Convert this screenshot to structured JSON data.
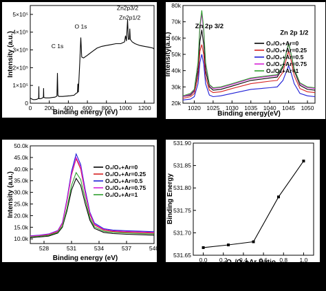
{
  "chart_data": [
    {
      "type": "line",
      "xlabel": "Binding energy (eV)",
      "ylabel": "Intensity (a.u.)",
      "xlim": [
        0,
        1300
      ],
      "ylim": [
        0,
        550000
      ],
      "xticks": [
        0,
        200,
        400,
        600,
        800,
        1000,
        1200
      ],
      "xtick_labels": [
        "0",
        "200",
        "400",
        "600",
        "800",
        "1000",
        "1200"
      ],
      "yticks": [
        0,
        100000,
        200000,
        300000,
        400000,
        500000
      ],
      "ytick_labels": [
        "0",
        "1×10⁵",
        "2×10⁵",
        "3×10⁵",
        "4×10⁵",
        "5×10⁵"
      ],
      "annotations": [
        {
          "text": "C 1s",
          "x": 285,
          "y": 310000
        },
        {
          "text": "O 1s",
          "x": 531,
          "y": 420000
        },
        {
          "text": "Zn2p3/2",
          "x": 1022,
          "y": 525000
        },
        {
          "text": "Zn2p1/2",
          "x": 1045,
          "y": 470000
        }
      ],
      "series": [
        {
          "x": [
            0,
            10,
            30,
            50,
            70,
            88,
            90,
            92,
            110,
            130,
            138,
            140,
            142,
            160,
            200,
            230,
            260,
            280,
            285,
            290,
            300,
            340,
            380,
            420,
            460,
            480,
            496,
            500,
            505,
            520,
            531,
            540,
            560,
            600,
            650,
            700,
            750,
            800,
            850,
            900,
            950,
            990,
            1000,
            1010,
            1022,
            1030,
            1040,
            1045,
            1050,
            1070,
            1100,
            1150,
            1200,
            1250,
            1290,
            1300
          ],
          "y": [
            30000,
            25000,
            20000,
            20000,
            22000,
            28000,
            95000,
            25000,
            25000,
            30000,
            35000,
            85000,
            32000,
            30000,
            30000,
            32000,
            34000,
            40000,
            170000,
            45000,
            38000,
            38000,
            40000,
            42000,
            45000,
            55000,
            60000,
            110000,
            62000,
            230000,
            370000,
            260000,
            255000,
            270000,
            290000,
            310000,
            320000,
            325000,
            330000,
            335000,
            335000,
            345000,
            380000,
            350000,
            470000,
            360000,
            360000,
            420000,
            360000,
            345000,
            335000,
            325000,
            320000,
            315000,
            310000,
            305000
          ]
        }
      ]
    },
    {
      "type": "line",
      "xlabel": "Binding energy(eV)",
      "ylabel": "Intensity(a.u.)",
      "xlim": [
        1017,
        1052
      ],
      "ylim": [
        20000,
        80000
      ],
      "xticks": [
        1020,
        1025,
        1030,
        1035,
        1040,
        1045,
        1050
      ],
      "yticks": [
        20000,
        30000,
        40000,
        50000,
        60000,
        70000,
        80000
      ],
      "ytick_labels": [
        "20k",
        "30k",
        "40k",
        "50k",
        "60k",
        "70k",
        "80k"
      ],
      "annotations": [
        {
          "text": "Zn 2p 3/2",
          "x": 1024.0,
          "y": 66000
        },
        {
          "text": "Zn 2p 1/2",
          "x": 1046.5,
          "y": 62000
        }
      ],
      "legend": "top-right",
      "x": [
        1017,
        1019,
        1020,
        1021,
        1021.5,
        1022,
        1022.5,
        1023,
        1024,
        1025,
        1027,
        1030,
        1035,
        1040,
        1042,
        1043.5,
        1044.5,
        1045,
        1045.5,
        1046.5,
        1048,
        1050,
        1052
      ],
      "series": [
        {
          "name": "O₂/O₂+Ar=0",
          "color": "#000000",
          "values": [
            24000,
            25000,
            27500,
            40000,
            58000,
            65000,
            56000,
            40000,
            30000,
            28000,
            28500,
            30500,
            34000,
            35500,
            36000,
            42000,
            52000,
            57000,
            52000,
            40000,
            31000,
            28500,
            28000
          ]
        },
        {
          "name": "O₂/O₂+Ar=0.25",
          "color": "#d62020",
          "values": [
            23000,
            24000,
            26000,
            36000,
            52000,
            56000,
            50000,
            36000,
            28000,
            26500,
            27000,
            29000,
            32000,
            33500,
            34000,
            39000,
            48000,
            52000,
            48000,
            37000,
            29000,
            27000,
            26500
          ]
        },
        {
          "name": "O₂/O₂+Ar=0.5",
          "color": "#1d1dd6",
          "values": [
            22000,
            22500,
            24000,
            32000,
            45000,
            50000,
            44000,
            32000,
            25000,
            24000,
            24500,
            26000,
            28500,
            29500,
            30000,
            34000,
            40000,
            43000,
            40000,
            32000,
            26000,
            24500,
            24000
          ]
        },
        {
          "name": "O₂/O₂+Ar=0.75",
          "color": "#d61fd6",
          "values": [
            24000,
            25500,
            28000,
            44000,
            66000,
            75000,
            64000,
            44000,
            31000,
            29000,
            29500,
            31500,
            35000,
            36500,
            37000,
            43000,
            52000,
            56000,
            52000,
            41000,
            32000,
            29500,
            29000
          ]
        },
        {
          "name": "O₂/O₂+Ar=1",
          "color": "#2e9e2e",
          "values": [
            24500,
            26000,
            28500,
            45000,
            68000,
            77000,
            66000,
            45000,
            31500,
            29500,
            30000,
            32000,
            35500,
            37000,
            37500,
            43000,
            52000,
            56500,
            52000,
            41000,
            32500,
            30000,
            29500
          ]
        }
      ]
    },
    {
      "type": "line",
      "xlabel": "Binding energy (eV)",
      "ylabel": "Intensity (a.u.)",
      "xlim": [
        526.5,
        540
      ],
      "ylim": [
        8000,
        50000
      ],
      "xticks": [
        528,
        531,
        534,
        537,
        540
      ],
      "yticks": [
        10000,
        15000,
        20000,
        25000,
        30000,
        35000,
        40000,
        45000,
        50000
      ],
      "ytick_labels": [
        "10.0k",
        "15.0k",
        "20.0k",
        "25.0k",
        "30.0k",
        "35.0k",
        "40.0k",
        "45.0k",
        "50.0k"
      ],
      "legend": "top-right",
      "x": [
        526.5,
        527.5,
        528.5,
        529.5,
        530,
        530.5,
        531,
        531.5,
        532,
        532.5,
        533,
        533.5,
        534.5,
        535.5,
        537,
        538.5,
        540
      ],
      "series": [
        {
          "name": "O₂/O₂+Ar=0",
          "color": "#000000",
          "values": [
            10500,
            10800,
            11200,
            12500,
            15000,
            22000,
            31000,
            36000,
            33000,
            25000,
            18000,
            14500,
            12800,
            12300,
            12000,
            11800,
            11600
          ]
        },
        {
          "name": "O₂/O₂+Ar=0.25",
          "color": "#d62020",
          "values": [
            11000,
            11300,
            11800,
            13200,
            16500,
            26000,
            37500,
            44500,
            40000,
            29500,
            20500,
            16000,
            13800,
            13200,
            12900,
            12700,
            12500
          ]
        },
        {
          "name": "O₂/O₂+Ar=0.5",
          "color": "#1d1dd6",
          "values": [
            11300,
            11600,
            12100,
            13600,
            17000,
            27000,
            39000,
            46500,
            42000,
            31000,
            21500,
            16800,
            14400,
            13800,
            13500,
            13300,
            13100
          ]
        },
        {
          "name": "O₂/O₂+Ar=0.75",
          "color": "#d61fd6",
          "values": [
            11200,
            11500,
            12000,
            13400,
            16800,
            26500,
            38000,
            45000,
            41000,
            30000,
            21000,
            16300,
            14100,
            13500,
            13200,
            13000,
            12800
          ]
        },
        {
          "name": "O₂/O₂+Ar=1",
          "color": "#2e9e2e",
          "values": [
            10800,
            11100,
            11500,
            12800,
            15500,
            23000,
            33000,
            38500,
            35500,
            27000,
            19000,
            15200,
            13300,
            12800,
            12500,
            12300,
            12100
          ]
        }
      ]
    },
    {
      "type": "line",
      "xlabel": "O₂/O₂+Ar Ratio",
      "ylabel": "Binding Energy",
      "xlim": [
        -0.1,
        1.1
      ],
      "ylim": [
        531.65,
        531.9
      ],
      "xticks": [
        0.0,
        0.2,
        0.4,
        0.6,
        0.8,
        1.0
      ],
      "xtick_labels": [
        "0.0",
        "0.2",
        "0.4",
        "0.6",
        "0.8",
        "1.0"
      ],
      "yticks": [
        531.65,
        531.7,
        531.75,
        531.8,
        531.85,
        531.9
      ],
      "ytick_labels": [
        "531.65",
        "531.70",
        "531.75",
        "531.80",
        "531.85",
        "531.90"
      ],
      "series": [
        {
          "x": [
            0,
            0.25,
            0.5,
            0.75,
            1.0
          ],
          "values": [
            531.667,
            531.673,
            531.68,
            531.78,
            531.86
          ],
          "color": "#000000"
        }
      ]
    }
  ]
}
